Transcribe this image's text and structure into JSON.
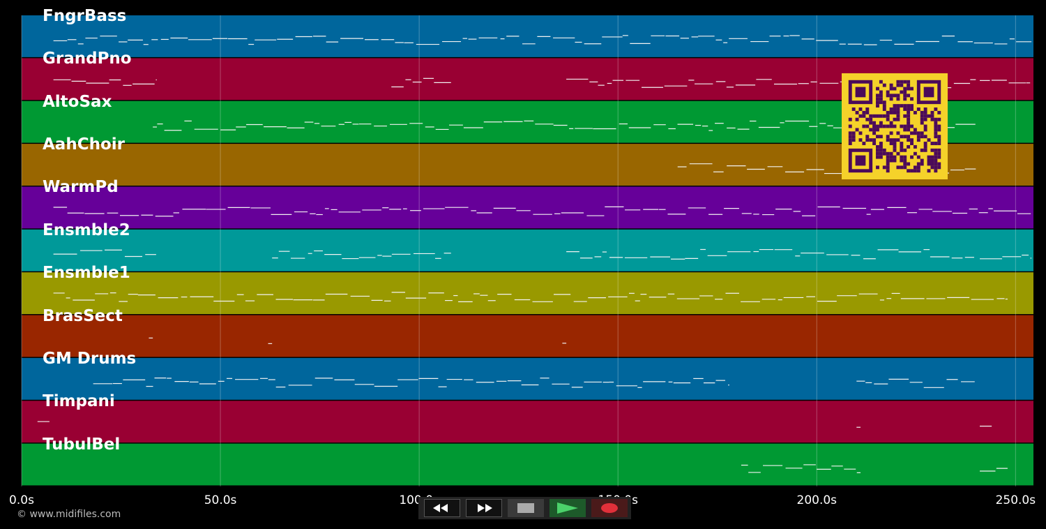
{
  "tracks": [
    {
      "name": "FngrBass",
      "color": "#00669c"
    },
    {
      "name": "GrandPno",
      "color": "#990033"
    },
    {
      "name": "AltoSax",
      "color": "#009933"
    },
    {
      "name": "AahChoir",
      "color": "#996600"
    },
    {
      "name": "WarmPd",
      "color": "#660099"
    },
    {
      "name": "Ensmble2",
      "color": "#009999"
    },
    {
      "name": "Ensmble1",
      "color": "#999900"
    },
    {
      "name": "BrasSect",
      "color": "#992600"
    },
    {
      "name": "GM Drums",
      "color": "#00669c"
    },
    {
      "name": "Timpani",
      "color": "#990033"
    },
    {
      "name": "TubulBel",
      "color": "#009933"
    }
  ],
  "timeline": {
    "ticks": [
      "0.0s",
      "50.0s",
      "100.0s",
      "150.0s",
      "200.0s",
      "250.0s"
    ],
    "tick_values": [
      0,
      50,
      100,
      150,
      200,
      250
    ]
  },
  "copyright": "© www.midifiles.com",
  "qr": {
    "fg": "#4b0a5a",
    "bg": "#f5d22a"
  },
  "transport": {
    "rewind": "rewind-icon",
    "fast_forward": "fast-forward-icon",
    "stop": "stop-icon",
    "play": "play-icon",
    "record": "record-icon"
  }
}
